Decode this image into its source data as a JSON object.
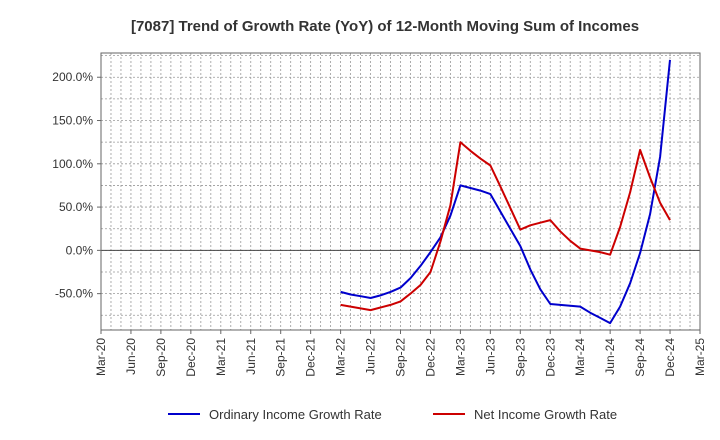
{
  "chart_data": {
    "type": "line",
    "title": "[7087]  Trend of Growth Rate (YoY) of 12-Month Moving Sum of Incomes",
    "xlabel": "",
    "ylabel": "",
    "x_tick_labels": [
      "Mar-20",
      "Jun-20",
      "Sep-20",
      "Dec-20",
      "Mar-21",
      "Jun-21",
      "Sep-21",
      "Dec-21",
      "Mar-22",
      "Jun-22",
      "Sep-22",
      "Dec-22",
      "Mar-23",
      "Jun-23",
      "Sep-23",
      "Dec-23",
      "Mar-24",
      "Jun-24",
      "Sep-24",
      "Dec-24",
      "Mar-25"
    ],
    "x_range": [
      "2020-03",
      "2025-03"
    ],
    "y_ticks": [
      -50,
      0,
      50,
      100,
      150,
      200
    ],
    "y_tick_labels": [
      "-50.0%",
      "0.0%",
      "50.0%",
      "100.0%",
      "150.0%",
      "200.0%"
    ],
    "ylim": [
      -92,
      228
    ],
    "grid": true,
    "legend_position": "bottom",
    "series": [
      {
        "name": "Ordinary Income Growth Rate",
        "color": "#0000cc",
        "points": [
          [
            "2022-03",
            -48
          ],
          [
            "2022-04",
            -51
          ],
          [
            "2022-05",
            -53
          ],
          [
            "2022-06",
            -55
          ],
          [
            "2022-07",
            -52
          ],
          [
            "2022-08",
            -48
          ],
          [
            "2022-09",
            -43
          ],
          [
            "2022-10",
            -32
          ],
          [
            "2022-11",
            -18
          ],
          [
            "2022-12",
            -2
          ],
          [
            "2023-01",
            15
          ],
          [
            "2023-02",
            40
          ],
          [
            "2023-03",
            75
          ],
          [
            "2023-04",
            72
          ],
          [
            "2023-05",
            69
          ],
          [
            "2023-06",
            65
          ],
          [
            "2023-07",
            45
          ],
          [
            "2023-08",
            25
          ],
          [
            "2023-09",
            5
          ],
          [
            "2023-10",
            -22
          ],
          [
            "2023-11",
            -45
          ],
          [
            "2023-12",
            -62
          ],
          [
            "2024-01",
            -63
          ],
          [
            "2024-02",
            -64
          ],
          [
            "2024-03",
            -65
          ],
          [
            "2024-04",
            -72
          ],
          [
            "2024-05",
            -78
          ],
          [
            "2024-06",
            -84
          ],
          [
            "2024-07",
            -65
          ],
          [
            "2024-08",
            -38
          ],
          [
            "2024-09",
            -3
          ],
          [
            "2024-10",
            42
          ],
          [
            "2024-11",
            108
          ],
          [
            "2024-12",
            220
          ]
        ]
      },
      {
        "name": "Net Income Growth Rate",
        "color": "#cc0000",
        "points": [
          [
            "2022-03",
            -63
          ],
          [
            "2022-04",
            -65
          ],
          [
            "2022-05",
            -67
          ],
          [
            "2022-06",
            -69
          ],
          [
            "2022-07",
            -66
          ],
          [
            "2022-08",
            -63
          ],
          [
            "2022-09",
            -59
          ],
          [
            "2022-10",
            -50
          ],
          [
            "2022-11",
            -40
          ],
          [
            "2022-12",
            -25
          ],
          [
            "2023-01",
            10
          ],
          [
            "2023-02",
            52
          ],
          [
            "2023-03",
            125
          ],
          [
            "2023-04",
            115
          ],
          [
            "2023-05",
            106
          ],
          [
            "2023-06",
            98
          ],
          [
            "2023-07",
            74
          ],
          [
            "2023-08",
            49
          ],
          [
            "2023-09",
            24
          ],
          [
            "2023-10",
            29
          ],
          [
            "2023-11",
            32
          ],
          [
            "2023-12",
            35
          ],
          [
            "2024-01",
            22
          ],
          [
            "2024-02",
            11
          ],
          [
            "2024-03",
            2
          ],
          [
            "2024-04",
            0
          ],
          [
            "2024-05",
            -2
          ],
          [
            "2024-06",
            -5
          ],
          [
            "2024-07",
            27
          ],
          [
            "2024-08",
            67
          ],
          [
            "2024-09",
            116
          ],
          [
            "2024-10",
            84
          ],
          [
            "2024-11",
            55
          ],
          [
            "2024-12",
            35
          ]
        ]
      }
    ]
  }
}
